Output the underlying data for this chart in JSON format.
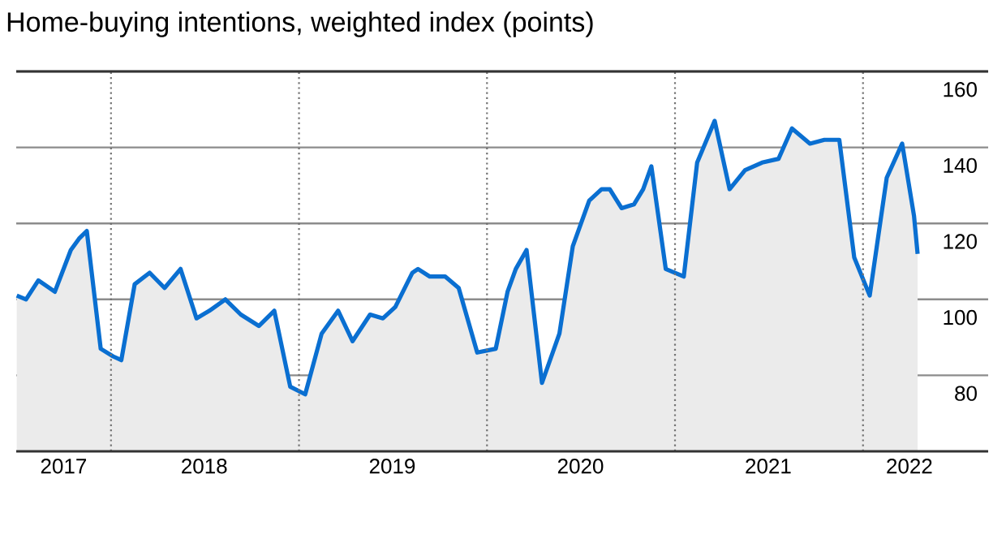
{
  "chart_data": {
    "type": "area",
    "title": "Home-buying intentions, weighted index (points)",
    "x": [
      "2017-07-02",
      "2017-07-20",
      "2017-08-13",
      "2017-09-14",
      "2017-10-15",
      "2017-10-31",
      "2017-11-15",
      "2017-12-12",
      "2018-01-05",
      "2018-01-21",
      "2018-02-16",
      "2018-03-17",
      "2018-04-15",
      "2018-05-16",
      "2018-06-16",
      "2018-07-11",
      "2018-08-11",
      "2018-09-10",
      "2018-10-15",
      "2018-11-14",
      "2018-12-15",
      "2019-01-13",
      "2019-02-14",
      "2019-03-18",
      "2019-04-15",
      "2019-05-19",
      "2019-06-13",
      "2019-07-07",
      "2019-08-09",
      "2019-08-20",
      "2019-09-12",
      "2019-10-12",
      "2019-11-07",
      "2019-12-13",
      "2020-01-18",
      "2020-02-10",
      "2020-02-26",
      "2020-03-18",
      "2020-04-17",
      "2020-05-21",
      "2020-06-16",
      "2020-07-18",
      "2020-08-11",
      "2020-08-27",
      "2020-09-19",
      "2020-10-13",
      "2020-10-31",
      "2020-11-16",
      "2020-12-14",
      "2021-01-01",
      "2021-01-18",
      "2021-02-13",
      "2021-03-19",
      "2021-04-17",
      "2021-05-17",
      "2021-06-19",
      "2021-07-21",
      "2021-08-16",
      "2021-09-20",
      "2021-10-18",
      "2021-11-16",
      "2021-12-15",
      "2022-01-14",
      "2022-02-16",
      "2022-03-18",
      "2022-04-10",
      "2022-04-17"
    ],
    "series": [
      {
        "color": "#0a6fd1",
        "values": [
          101,
          100,
          105,
          102,
          113,
          116,
          118,
          87,
          85,
          84,
          104,
          107,
          103,
          108,
          95,
          97,
          100,
          96,
          93,
          97,
          77,
          75,
          91,
          97,
          89,
          96,
          95,
          98,
          107,
          108,
          106,
          106,
          103,
          86,
          87,
          102,
          108,
          113,
          78,
          91,
          114,
          126,
          129,
          129,
          124,
          125,
          129,
          135,
          108,
          107,
          106,
          136,
          147,
          129,
          134,
          136,
          137,
          145,
          141,
          142,
          142,
          111,
          101,
          132,
          141,
          122,
          112
        ]
      }
    ],
    "xlim": [
      "2017-07-01",
      "2022-09-01"
    ],
    "xticks": [
      {
        "value": "2017-10-01",
        "label": "2017"
      },
      {
        "value": "2018-07-01",
        "label": "2018"
      },
      {
        "value": "2019-07-01",
        "label": "2019"
      },
      {
        "value": "2020-07-01",
        "label": "2020"
      },
      {
        "value": "2021-07-01",
        "label": "2021"
      },
      {
        "value": "2022-04-01",
        "label": "2022"
      }
    ],
    "ylim": [
      60,
      160
    ],
    "yticks": [
      80,
      100,
      120,
      140,
      160
    ],
    "grid": "y",
    "ref_lines": [
      {
        "axis": "x",
        "value": "2018-01-01",
        "line_style": "dotted"
      },
      {
        "axis": "x",
        "value": "2019-01-01",
        "line_style": "dotted"
      },
      {
        "axis": "x",
        "value": "2020-01-01",
        "line_style": "dotted"
      },
      {
        "axis": "x",
        "value": "2021-01-01",
        "line_style": "dotted"
      },
      {
        "axis": "x",
        "value": "2022-01-01",
        "line_style": "dotted"
      }
    ]
  }
}
